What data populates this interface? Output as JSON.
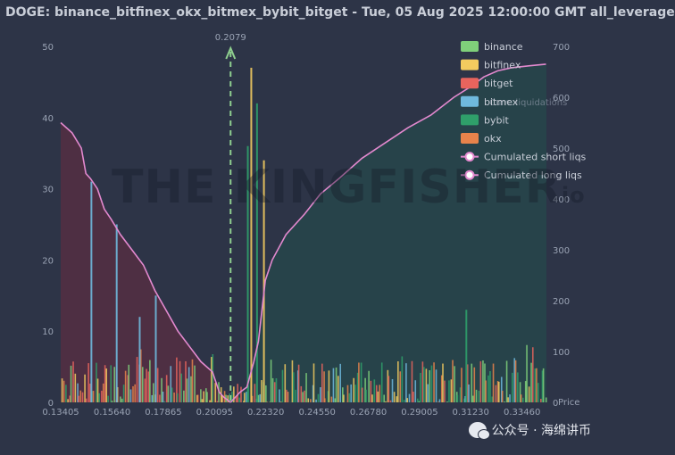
{
  "title": "DOGE: binance_bitfinex_okx_bitmex_bybit_bitget - Tue, 05 Aug 2025 12:00:00 GMT all_leverage",
  "watermark": "THE KINGFISHER",
  "watermark_suffix": "io",
  "footer_text": "公众号 · 海绵讲币",
  "chart_data": {
    "type": "bar",
    "current_price": 0.2079,
    "current_price_label": "0.2079",
    "x_ticks": [
      "0.13405",
      "0.15640",
      "0.17865",
      "0.20095",
      "0.22320",
      "0.24550",
      "0.26780",
      "0.29005",
      "0.31230",
      "0.33460"
    ],
    "x_tick_values": [
      0.13405,
      0.1564,
      0.17865,
      0.20095,
      0.2232,
      0.2455,
      0.2678,
      0.29005,
      0.3123,
      0.3346
    ],
    "xlim": [
      0.13405,
      0.3452
    ],
    "ylim_left": [
      0,
      50
    ],
    "y_ticks_left": [
      "0",
      "10",
      "20",
      "30",
      "40",
      "50"
    ],
    "ylim_right": [
      0,
      700
    ],
    "y_ticks_right": [
      "0",
      "100",
      "200",
      "300",
      "400",
      "500",
      "600",
      "700"
    ],
    "right_axis_label": "Cum. liquidations",
    "right_axis_bottom_label": "Price",
    "legend": [
      {
        "name": "binance",
        "color": "#7fd07a"
      },
      {
        "name": "bitfinex",
        "color": "#f3cb5f"
      },
      {
        "name": "bitget",
        "color": "#e8645d"
      },
      {
        "name": "bitmex",
        "color": "#6fb9dd"
      },
      {
        "name": "bybit",
        "color": "#2f9f6a"
      },
      {
        "name": "okx",
        "color": "#e8834b"
      },
      {
        "name": "Cumulated short liqs",
        "color": "#e389cf",
        "marker": "line"
      },
      {
        "name": "Cumulated long liqs",
        "color": "#e389cf",
        "marker": "line"
      }
    ],
    "cumulated_long_liqs": {
      "x": [
        0.13405,
        0.139,
        0.143,
        0.145,
        0.147,
        0.15,
        0.153,
        0.156,
        0.16,
        0.165,
        0.17,
        0.175,
        0.18,
        0.185,
        0.19,
        0.195,
        0.2,
        0.203,
        0.205,
        0.2079
      ],
      "y": [
        550,
        530,
        500,
        450,
        440,
        420,
        380,
        360,
        330,
        300,
        270,
        220,
        180,
        140,
        110,
        80,
        60,
        20,
        10,
        0
      ]
    },
    "cumulated_short_liqs": {
      "x": [
        0.2079,
        0.212,
        0.215,
        0.218,
        0.22,
        0.222,
        0.223,
        0.226,
        0.232,
        0.24,
        0.247,
        0.255,
        0.265,
        0.275,
        0.285,
        0.295,
        0.305,
        0.312,
        0.318,
        0.324,
        0.33,
        0.338,
        0.345
      ],
      "y": [
        0,
        20,
        30,
        80,
        120,
        200,
        240,
        280,
        330,
        370,
        410,
        440,
        480,
        510,
        540,
        565,
        600,
        620,
        640,
        652,
        658,
        662,
        665
      ]
    },
    "notable_bars": [
      {
        "x": 0.147,
        "value": 31,
        "exchange": "bitmex"
      },
      {
        "x": 0.158,
        "value": 25,
        "exchange": "bitmex"
      },
      {
        "x": 0.168,
        "value": 12,
        "exchange": "bitmex"
      },
      {
        "x": 0.175,
        "value": 15,
        "exchange": "bitmex"
      },
      {
        "x": 0.215,
        "value": 36,
        "exchange": "bybit"
      },
      {
        "x": 0.219,
        "value": 42,
        "exchange": "bybit"
      },
      {
        "x": 0.222,
        "value": 34,
        "exchange": "bitfinex"
      },
      {
        "x": 0.2165,
        "value": 47,
        "exchange": "bitfinex"
      },
      {
        "x": 0.31,
        "value": 13,
        "exchange": "bybit"
      }
    ]
  }
}
